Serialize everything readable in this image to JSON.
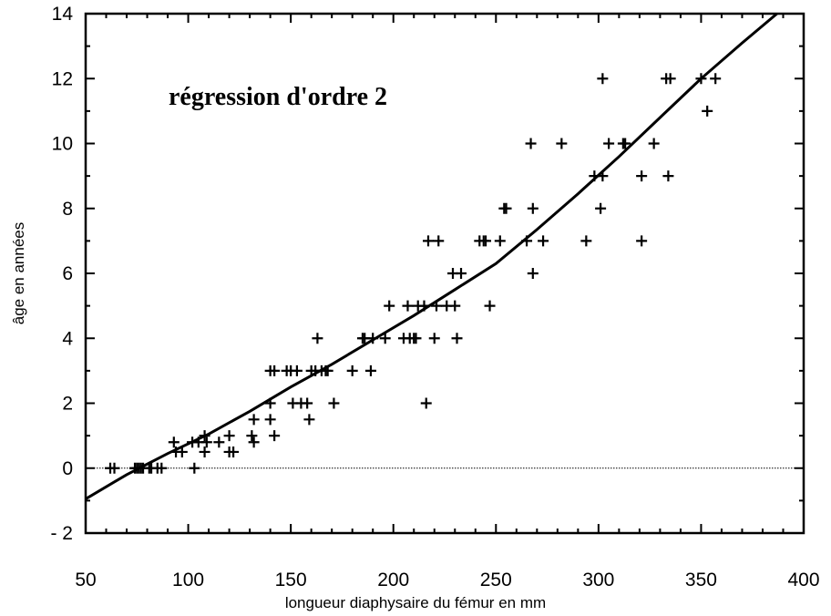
{
  "chart_data": {
    "type": "scatter",
    "annotation": "régression d'ordre 2",
    "xlabel": "longueur diaphysaire du fémur en mm",
    "ylabel": "âge en années",
    "xlim": [
      50,
      400
    ],
    "ylim": [
      -2,
      14
    ],
    "x_ticks": [
      50,
      100,
      150,
      200,
      250,
      300,
      350,
      400
    ],
    "y_ticks": [
      -2,
      0,
      2,
      4,
      6,
      8,
      10,
      12,
      14
    ],
    "grid": false,
    "reference_line_y": 0,
    "regression_curve": {
      "x": [
        50,
        70,
        90,
        110,
        130,
        150,
        170,
        190,
        210,
        230,
        250,
        270,
        290,
        310,
        330,
        350,
        370,
        387
      ],
      "y": [
        -0.95,
        -0.2,
        0.45,
        1.05,
        1.75,
        2.5,
        3.2,
        3.95,
        4.7,
        5.5,
        6.3,
        7.35,
        8.45,
        9.6,
        10.8,
        12.0,
        13.1,
        14.0
      ]
    },
    "points": [
      [
        62,
        0
      ],
      [
        64,
        0
      ],
      [
        74,
        0
      ],
      [
        75,
        0
      ],
      [
        76,
        0
      ],
      [
        77,
        0
      ],
      [
        78,
        0
      ],
      [
        81,
        0
      ],
      [
        82,
        0
      ],
      [
        85,
        0
      ],
      [
        87,
        0
      ],
      [
        93,
        0.8
      ],
      [
        94,
        0.5
      ],
      [
        97,
        0.5
      ],
      [
        102,
        0.8
      ],
      [
        103,
        0
      ],
      [
        105,
        0.8
      ],
      [
        108,
        0.5
      ],
      [
        108,
        1
      ],
      [
        109,
        0.8
      ],
      [
        115,
        0.8
      ],
      [
        120,
        1
      ],
      [
        120,
        0.5
      ],
      [
        122,
        0.5
      ],
      [
        131,
        1
      ],
      [
        132,
        0.8
      ],
      [
        132,
        1.5
      ],
      [
        140,
        2
      ],
      [
        140,
        1.5
      ],
      [
        142,
        1
      ],
      [
        140,
        3
      ],
      [
        142,
        3
      ],
      [
        148,
        3
      ],
      [
        150,
        3
      ],
      [
        151,
        2
      ],
      [
        153,
        3
      ],
      [
        155,
        2
      ],
      [
        158,
        2
      ],
      [
        159,
        1.5
      ],
      [
        160,
        3
      ],
      [
        162,
        3
      ],
      [
        163,
        4
      ],
      [
        165,
        3
      ],
      [
        167,
        3
      ],
      [
        168,
        3
      ],
      [
        171,
        2
      ],
      [
        180,
        3
      ],
      [
        185,
        4
      ],
      [
        186,
        4
      ],
      [
        189,
        3
      ],
      [
        190,
        4
      ],
      [
        196,
        4
      ],
      [
        198,
        5
      ],
      [
        205,
        4
      ],
      [
        207,
        5
      ],
      [
        208,
        4
      ],
      [
        210,
        4
      ],
      [
        211,
        4
      ],
      [
        212,
        5
      ],
      [
        215,
        5
      ],
      [
        216,
        2
      ],
      [
        217,
        7
      ],
      [
        220,
        4
      ],
      [
        221,
        5
      ],
      [
        222,
        7
      ],
      [
        226,
        5
      ],
      [
        229,
        6
      ],
      [
        230,
        5
      ],
      [
        231,
        4
      ],
      [
        233,
        6
      ],
      [
        242,
        7
      ],
      [
        244,
        7
      ],
      [
        245,
        7
      ],
      [
        247,
        5
      ],
      [
        252,
        7
      ],
      [
        254,
        8
      ],
      [
        255,
        8
      ],
      [
        265,
        7
      ],
      [
        267,
        10
      ],
      [
        268,
        8
      ],
      [
        268,
        6
      ],
      [
        273,
        7
      ],
      [
        282,
        10
      ],
      [
        294,
        7
      ],
      [
        298,
        9
      ],
      [
        301,
        8
      ],
      [
        302,
        12
      ],
      [
        302,
        9
      ],
      [
        305,
        10
      ],
      [
        312,
        10
      ],
      [
        313,
        10
      ],
      [
        321,
        9
      ],
      [
        321,
        7
      ],
      [
        327,
        10
      ],
      [
        333,
        12
      ],
      [
        334,
        9
      ],
      [
        335,
        12
      ],
      [
        350,
        12
      ],
      [
        353,
        11
      ],
      [
        357,
        12
      ]
    ]
  }
}
